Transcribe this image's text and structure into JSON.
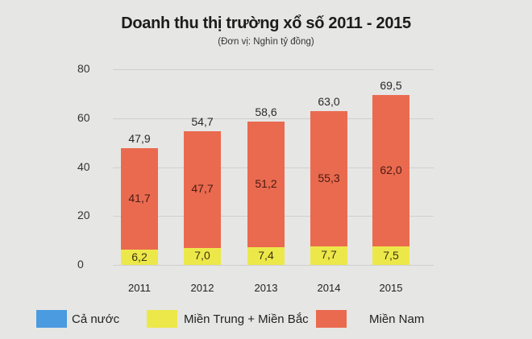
{
  "chart_data": {
    "type": "bar",
    "stacked": true,
    "title": "Doanh thu thị trường xổ số 2011 - 2015",
    "subtitle": "(Đơn vị: Nghìn tỷ đồng)",
    "xlabel": "",
    "ylabel": "",
    "ylim": [
      0,
      80
    ],
    "yticks": [
      "0",
      "20",
      "40",
      "60",
      "80"
    ],
    "grid": true,
    "legend_position": "bottom",
    "categories": [
      "2011",
      "2012",
      "2013",
      "2014",
      "2015"
    ],
    "series": [
      {
        "name": "Miền Trung + Miền Bắc",
        "color": "#ede84a",
        "values": [
          6.2,
          7.0,
          7.4,
          7.7,
          7.5
        ],
        "labels": [
          "6,2",
          "7,0",
          "7,4",
          "7,7",
          "7,5"
        ]
      },
      {
        "name": "Miền Nam",
        "color": "#ea6a4f",
        "values": [
          41.7,
          47.7,
          51.2,
          55.3,
          62.0
        ],
        "labels": [
          "41,7",
          "47,7",
          "51,2",
          "55,3",
          "62,0"
        ]
      },
      {
        "name": "Cả nước",
        "color": "#4a9be0",
        "values": [
          47.9,
          54.7,
          58.6,
          63.0,
          69.5
        ],
        "labels": [
          "47,9",
          "54,7",
          "58,6",
          "63,0",
          "69,5"
        ]
      }
    ]
  },
  "legend": [
    {
      "label": "Cả nước",
      "color": "#4a9be0"
    },
    {
      "label": "Miền Trung + Miền Bắc",
      "color": "#ede84a"
    },
    {
      "label": "Miền Nam",
      "color": "#ea6a4f"
    }
  ]
}
